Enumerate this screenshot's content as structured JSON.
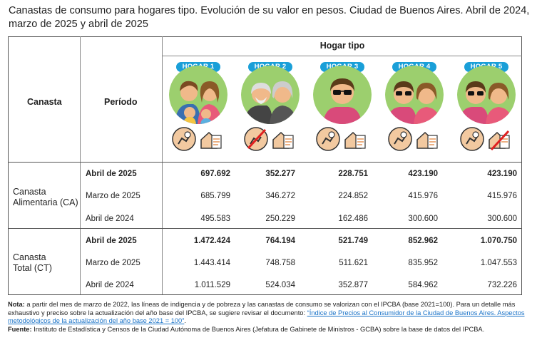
{
  "title": "Canastas de consumo para hogares tipo. Evolución de su valor en pesos. Ciudad de Buenos Aires. Abril de 2024, marzo de 2025 y abril de 2025",
  "header": {
    "group": "Hogar tipo",
    "canasta": "Canasta",
    "periodo": "Período",
    "hogares": [
      "HOGAR 1",
      "HOGAR 2",
      "HOGAR 3",
      "HOGAR 4",
      "HOGAR 5"
    ]
  },
  "groups": [
    {
      "label_line1": "Canasta",
      "label_line2": "Alimentaria (CA)",
      "rows": [
        {
          "period": "Abril de 2025",
          "bold": true,
          "values": [
            "697.692",
            "352.277",
            "228.751",
            "423.190",
            "423.190"
          ]
        },
        {
          "period": "Marzo de 2025",
          "bold": false,
          "values": [
            "685.799",
            "346.272",
            "224.852",
            "415.976",
            "415.976"
          ]
        },
        {
          "period": "Abril de 2024",
          "bold": false,
          "values": [
            "495.583",
            "250.229",
            "162.486",
            "300.600",
            "300.600"
          ]
        }
      ]
    },
    {
      "label_line1": "Canasta",
      "label_line2": "Total (CT)",
      "rows": [
        {
          "period": "Abril de 2025",
          "bold": true,
          "values": [
            "1.472.424",
            "764.194",
            "521.749",
            "852.962",
            "1.070.750"
          ]
        },
        {
          "period": "Marzo de 2025",
          "bold": false,
          "values": [
            "1.443.414",
            "748.758",
            "511.621",
            "835.952",
            "1.047.553"
          ]
        },
        {
          "period": "Abril de 2024",
          "bold": false,
          "values": [
            "1.011.529",
            "524.034",
            "352.877",
            "584.962",
            "732.226"
          ]
        }
      ]
    }
  ],
  "notes": {
    "nota_label": "Nota:",
    "nota_text": " a partir del mes de marzo de 2022, las líneas de indigencia y de pobreza y las canastas de consumo se valorizan con el IPCBA (base 2021=100). Para un detalle más exhaustivo y preciso sobre la actualización del año base del IPCBA, se sugiere revisar el documento: ",
    "link_text": "“Índice de Precios al Consumidor de la Ciudad de Buenos Aires. Aspectos metodológicos de la actualización del año base 2021 = 100”",
    "link_after": ".",
    "fuente_label": "Fuente:",
    "fuente_text": " Instituto de Estadística y Censos de la Ciudad Autónoma de Buenos Aires (Jefatura de Gabinete de Ministros - GCBA) sobre la base de datos del IPCBA."
  },
  "colors": {
    "badge": "#1a9fd8",
    "circle_bg": "#9ccf6e",
    "icon_bg": "#f2c9a0"
  }
}
